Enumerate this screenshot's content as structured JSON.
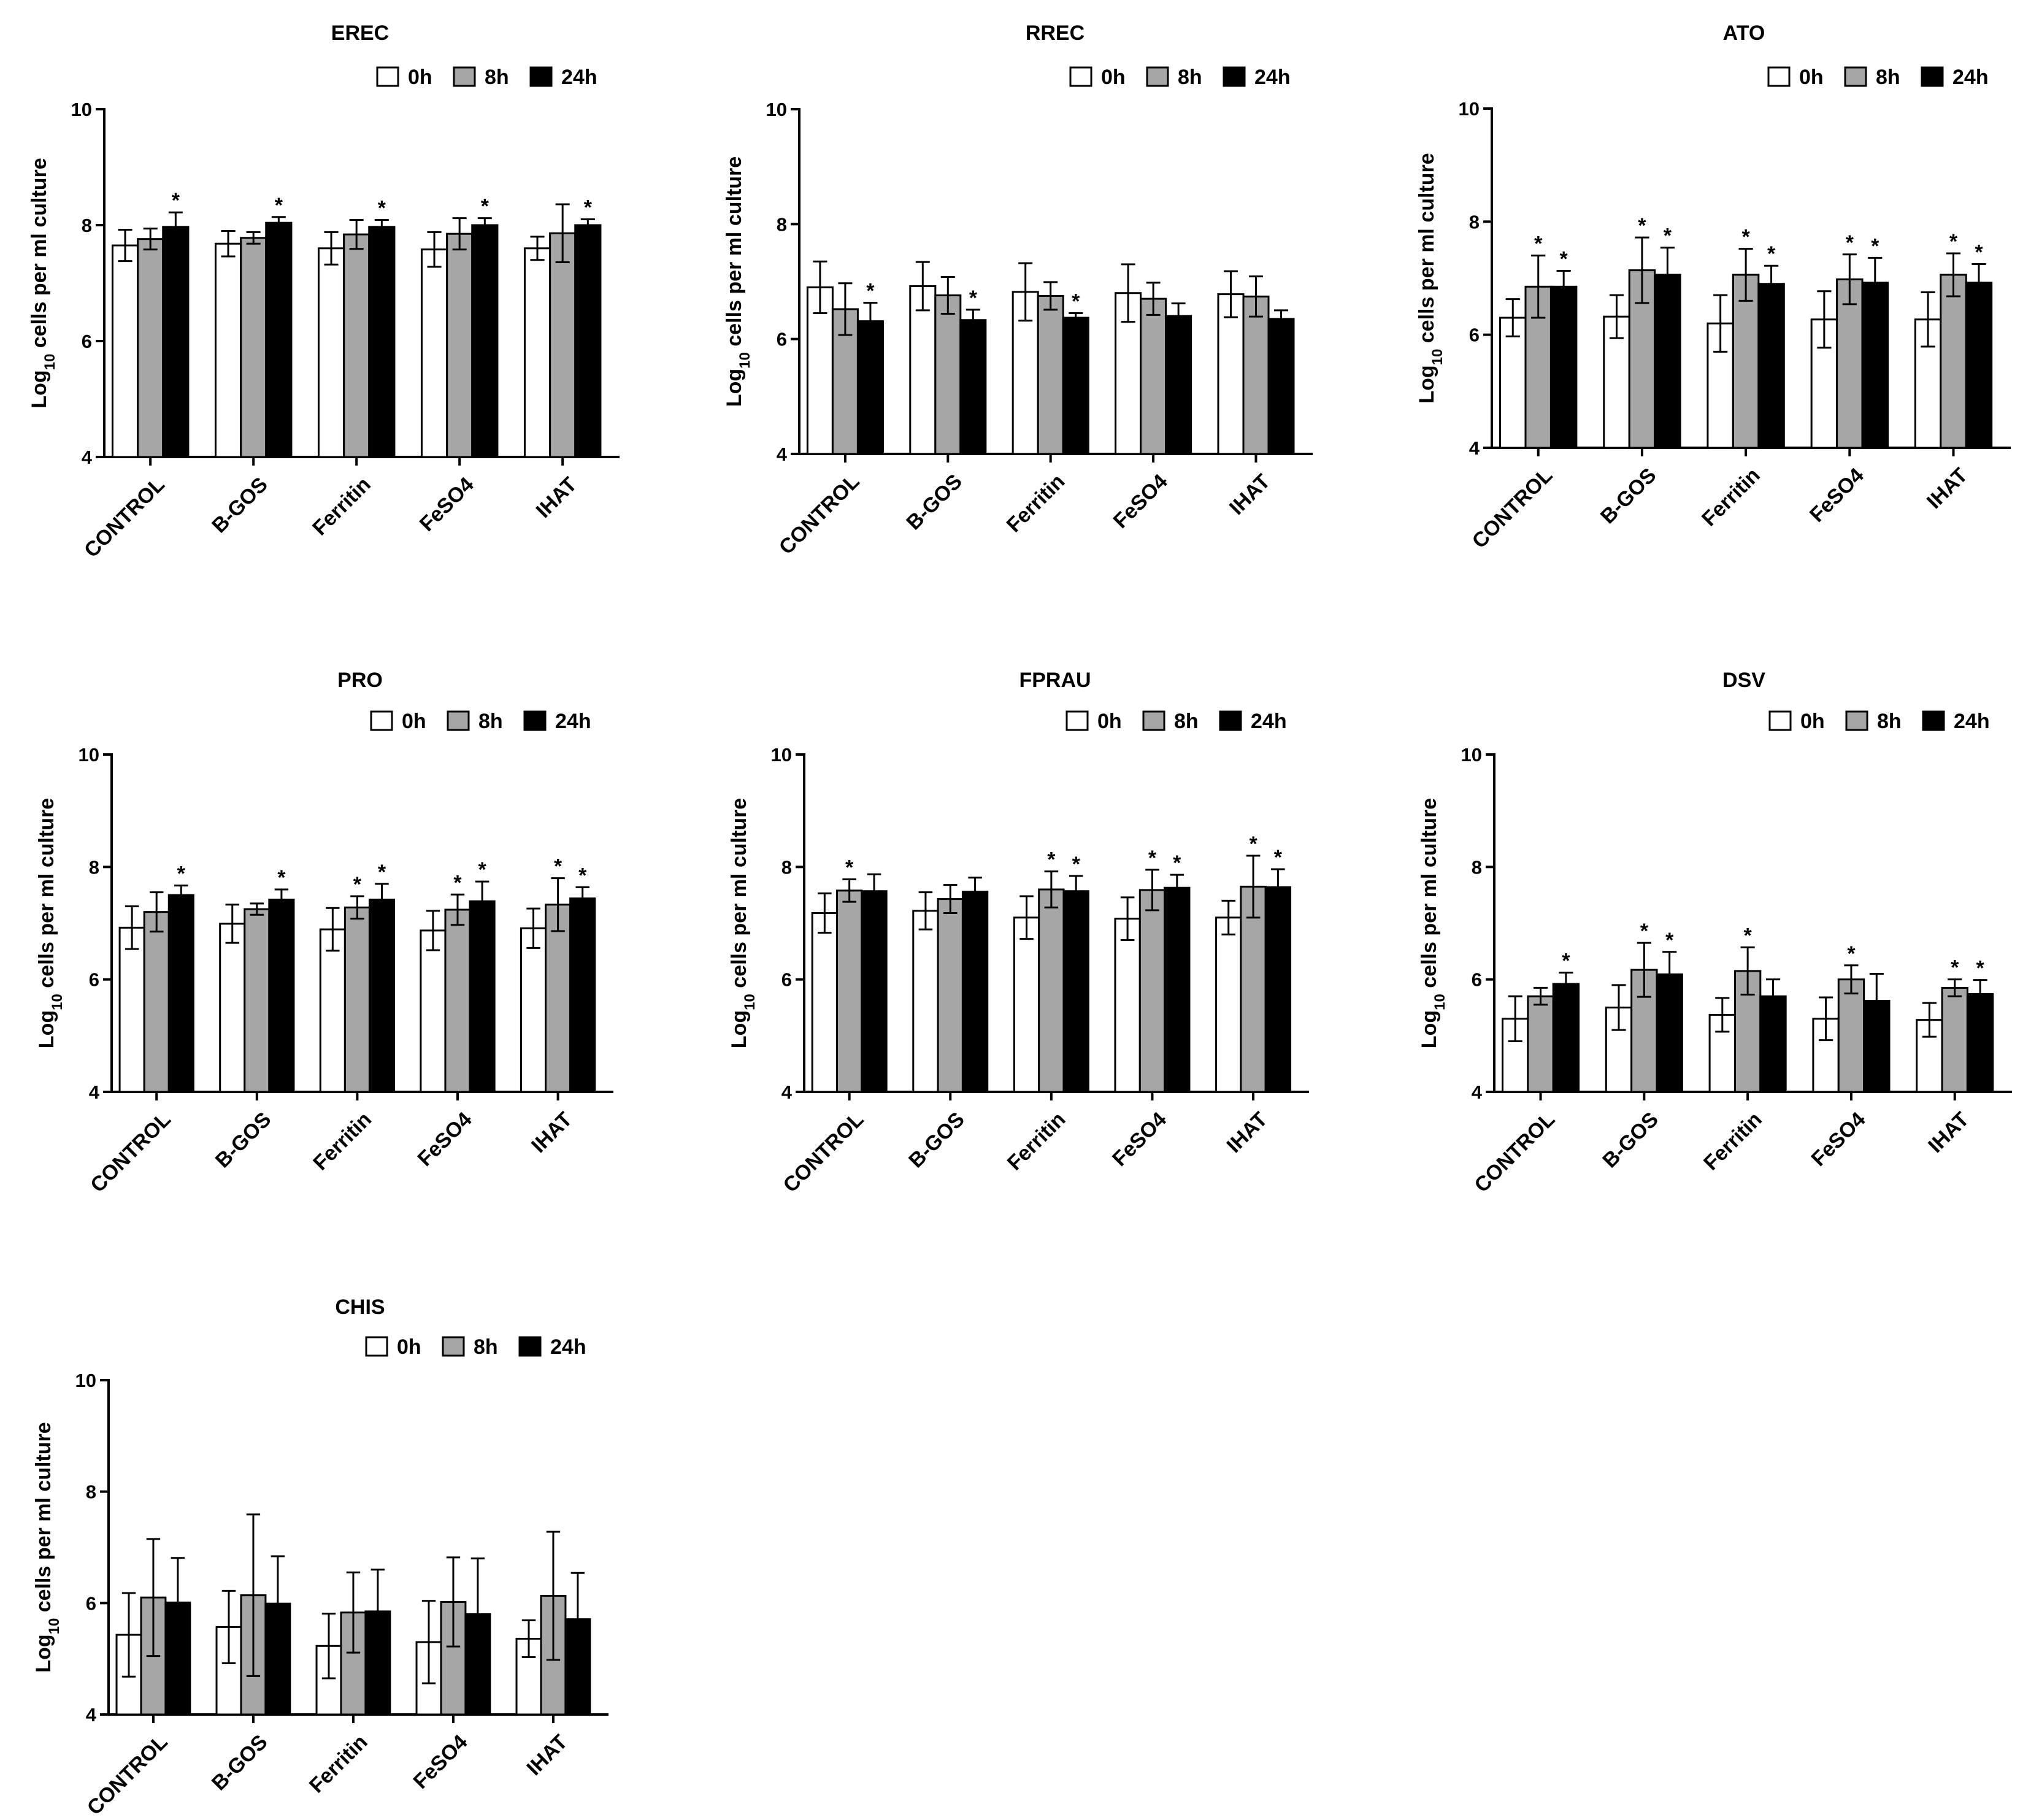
{
  "legend_labels": [
    "0h",
    "8h",
    "24h"
  ],
  "series_colors": {
    "0h": "#ffffff",
    "8h": "#a6a6a6",
    "24h": "#000000"
  },
  "y_axis_label": {
    "prefix": "Log",
    "subscript": "10",
    "suffix": " cells per ml culture"
  },
  "chart_data": [
    {
      "type": "bar",
      "title": "EREC",
      "ylabel": "Log10 cells per ml culture",
      "xlabel": "",
      "categories": [
        "CONTROL",
        "B-GOS",
        "Ferritin",
        "FeSO4",
        "IHAT"
      ],
      "ylim": [
        4,
        10
      ],
      "yticks": [
        4,
        6,
        8,
        10
      ],
      "legend": "top-right",
      "series": [
        {
          "name": "0h",
          "values": [
            7.65,
            7.68,
            7.6,
            7.58,
            7.6
          ],
          "errors": [
            0.27,
            0.22,
            0.28,
            0.3,
            0.2
          ],
          "significant": [
            false,
            false,
            false,
            false,
            false
          ]
        },
        {
          "name": "8h",
          "values": [
            7.76,
            7.78,
            7.84,
            7.85,
            7.86
          ],
          "errors": [
            0.18,
            0.1,
            0.25,
            0.27,
            0.5
          ],
          "significant": [
            false,
            false,
            false,
            false,
            false
          ]
        },
        {
          "name": "24h",
          "values": [
            7.97,
            8.04,
            7.97,
            8.0,
            8.0
          ],
          "errors": [
            0.25,
            0.1,
            0.12,
            0.12,
            0.1
          ],
          "significant": [
            true,
            true,
            true,
            true,
            true
          ]
        }
      ]
    },
    {
      "type": "bar",
      "title": "RREC",
      "ylabel": "Log10 cells per ml culture",
      "xlabel": "",
      "categories": [
        "CONTROL",
        "B-GOS",
        "Ferritin",
        "FeSO4",
        "IHAT"
      ],
      "ylim": [
        4,
        10
      ],
      "yticks": [
        4,
        6,
        8,
        10
      ],
      "legend": "top-right",
      "series": [
        {
          "name": "0h",
          "values": [
            6.9,
            6.92,
            6.82,
            6.8,
            6.78
          ],
          "errors": [
            0.45,
            0.42,
            0.5,
            0.5,
            0.4
          ],
          "significant": [
            false,
            false,
            false,
            false,
            false
          ]
        },
        {
          "name": "8h",
          "values": [
            6.52,
            6.76,
            6.75,
            6.7,
            6.74
          ],
          "errors": [
            0.45,
            0.32,
            0.24,
            0.28,
            0.35
          ],
          "significant": [
            false,
            false,
            false,
            false,
            false
          ]
        },
        {
          "name": "24h",
          "values": [
            6.31,
            6.33,
            6.37,
            6.4,
            6.35
          ],
          "errors": [
            0.32,
            0.18,
            0.08,
            0.22,
            0.15
          ],
          "significant": [
            true,
            true,
            true,
            false,
            false
          ]
        }
      ]
    },
    {
      "type": "bar",
      "title": "ATO",
      "ylabel": "Log10 cells per ml culture",
      "xlabel": "",
      "categories": [
        "CONTROL",
        "B-GOS",
        "Ferritin",
        "FeSO4",
        "IHAT"
      ],
      "ylim": [
        4,
        10
      ],
      "yticks": [
        4,
        6,
        8,
        10
      ],
      "legend": "top-right",
      "series": [
        {
          "name": "0h",
          "values": [
            6.3,
            6.32,
            6.2,
            6.27,
            6.27
          ],
          "errors": [
            0.33,
            0.38,
            0.5,
            0.5,
            0.48
          ],
          "significant": [
            false,
            false,
            false,
            false,
            false
          ]
        },
        {
          "name": "8h",
          "values": [
            6.85,
            7.14,
            7.06,
            6.98,
            7.06
          ],
          "errors": [
            0.55,
            0.58,
            0.46,
            0.44,
            0.38
          ],
          "significant": [
            true,
            true,
            true,
            true,
            true
          ]
        },
        {
          "name": "24h",
          "values": [
            6.85,
            7.06,
            6.9,
            6.92,
            6.92
          ],
          "errors": [
            0.28,
            0.48,
            0.32,
            0.44,
            0.33
          ],
          "significant": [
            true,
            true,
            true,
            true,
            true
          ]
        }
      ]
    },
    {
      "type": "bar",
      "title": "PRO",
      "ylabel": "Log10 cells per ml culture",
      "xlabel": "",
      "categories": [
        "CONTROL",
        "B-GOS",
        "Ferritin",
        "FeSO4",
        "IHAT"
      ],
      "ylim": [
        4,
        10
      ],
      "yticks": [
        4,
        6,
        8,
        10
      ],
      "legend": "top-right",
      "series": [
        {
          "name": "0h",
          "values": [
            6.92,
            6.99,
            6.89,
            6.87,
            6.91
          ],
          "errors": [
            0.38,
            0.34,
            0.38,
            0.35,
            0.35
          ],
          "significant": [
            false,
            false,
            false,
            false,
            false
          ]
        },
        {
          "name": "8h",
          "values": [
            7.2,
            7.25,
            7.28,
            7.24,
            7.33
          ],
          "errors": [
            0.35,
            0.1,
            0.2,
            0.27,
            0.47
          ],
          "significant": [
            false,
            false,
            true,
            true,
            true
          ]
        },
        {
          "name": "24h",
          "values": [
            7.5,
            7.42,
            7.42,
            7.39,
            7.44
          ],
          "errors": [
            0.17,
            0.18,
            0.28,
            0.35,
            0.2
          ],
          "significant": [
            true,
            true,
            true,
            true,
            true
          ]
        }
      ]
    },
    {
      "type": "bar",
      "title": "FPRAU",
      "ylabel": "Log10 cells per ml culture",
      "xlabel": "",
      "categories": [
        "CONTROL",
        "B-GOS",
        "Ferritin",
        "FeSO4",
        "IHAT"
      ],
      "ylim": [
        4,
        10
      ],
      "yticks": [
        4,
        6,
        8,
        10
      ],
      "legend": "top-right",
      "series": [
        {
          "name": "0h",
          "values": [
            7.18,
            7.22,
            7.1,
            7.08,
            7.1
          ],
          "errors": [
            0.35,
            0.33,
            0.38,
            0.38,
            0.3
          ],
          "significant": [
            false,
            false,
            false,
            false,
            false
          ]
        },
        {
          "name": "8h",
          "values": [
            7.58,
            7.43,
            7.6,
            7.59,
            7.65
          ],
          "errors": [
            0.2,
            0.25,
            0.32,
            0.36,
            0.55
          ],
          "significant": [
            true,
            false,
            true,
            true,
            true
          ]
        },
        {
          "name": "24h",
          "values": [
            7.57,
            7.56,
            7.57,
            7.63,
            7.64
          ],
          "errors": [
            0.3,
            0.25,
            0.27,
            0.23,
            0.32
          ],
          "significant": [
            false,
            false,
            true,
            true,
            true
          ]
        }
      ]
    },
    {
      "type": "bar",
      "title": "DSV",
      "ylabel": "Log10 cells per ml culture",
      "xlabel": "",
      "categories": [
        "CONTROL",
        "B-GOS",
        "Ferritin",
        "FeSO4",
        "IHAT"
      ],
      "ylim": [
        4,
        10
      ],
      "yticks": [
        4,
        6,
        8,
        10
      ],
      "legend": "top-right",
      "series": [
        {
          "name": "0h",
          "values": [
            5.3,
            5.5,
            5.37,
            5.3,
            5.28
          ],
          "errors": [
            0.4,
            0.4,
            0.3,
            0.38,
            0.3
          ],
          "significant": [
            false,
            false,
            false,
            false,
            false
          ]
        },
        {
          "name": "8h",
          "values": [
            5.7,
            6.17,
            6.15,
            6.0,
            5.85
          ],
          "errors": [
            0.15,
            0.48,
            0.42,
            0.25,
            0.15
          ],
          "significant": [
            false,
            true,
            true,
            true,
            true
          ]
        },
        {
          "name": "24h",
          "values": [
            5.92,
            6.09,
            5.7,
            5.62,
            5.74
          ],
          "errors": [
            0.2,
            0.4,
            0.3,
            0.48,
            0.25
          ],
          "significant": [
            true,
            true,
            false,
            false,
            true
          ]
        }
      ]
    },
    {
      "type": "bar",
      "title": "CHIS",
      "ylabel": "Log10 cells per ml culture",
      "xlabel": "",
      "categories": [
        "CONTROL",
        "B-GOS",
        "Ferritin",
        "FeSO4",
        "IHAT"
      ],
      "ylim": [
        4,
        10
      ],
      "yticks": [
        4,
        6,
        8,
        10
      ],
      "legend": "top-right",
      "series": [
        {
          "name": "0h",
          "values": [
            5.43,
            5.57,
            5.23,
            5.3,
            5.36
          ],
          "errors": [
            0.75,
            0.65,
            0.58,
            0.74,
            0.33
          ],
          "significant": [
            false,
            false,
            false,
            false,
            false
          ]
        },
        {
          "name": "8h",
          "values": [
            6.1,
            6.14,
            5.83,
            6.02,
            6.13
          ],
          "errors": [
            1.05,
            1.45,
            0.72,
            0.8,
            1.15
          ],
          "significant": [
            false,
            false,
            false,
            false,
            false
          ]
        },
        {
          "name": "24h",
          "values": [
            6.01,
            5.99,
            5.85,
            5.8,
            5.71
          ],
          "errors": [
            0.8,
            0.85,
            0.75,
            1.0,
            0.83
          ],
          "significant": [
            false,
            false,
            false,
            false,
            false
          ]
        }
      ]
    }
  ]
}
